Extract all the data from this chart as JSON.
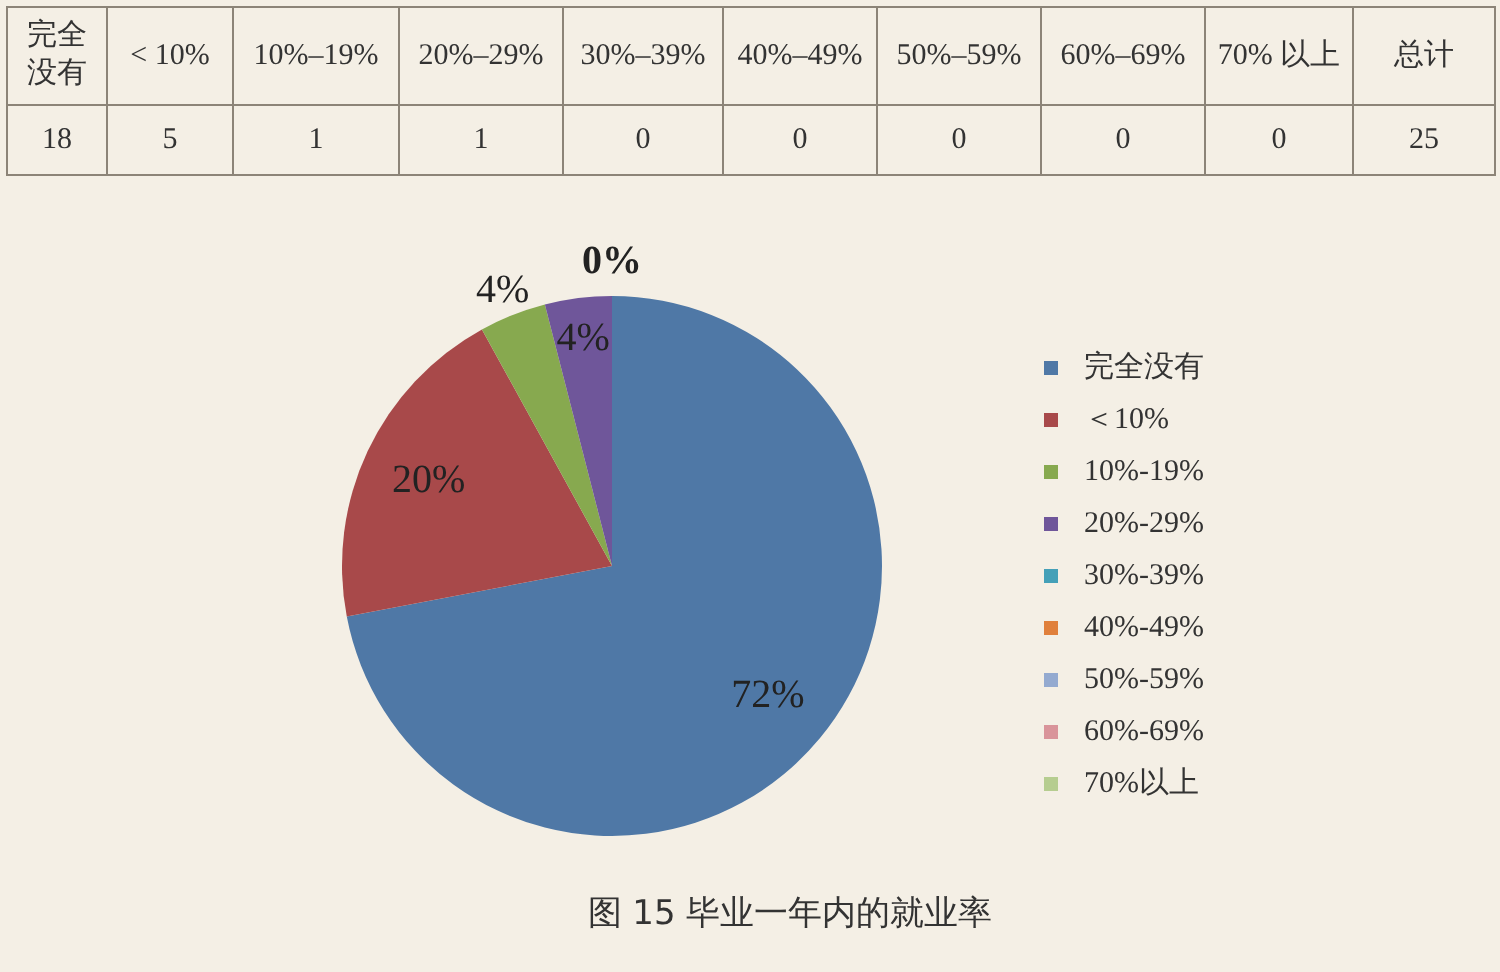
{
  "chart_data": [
    {
      "type": "other",
      "categories": [
        "完全没有",
        "< 10%",
        "10%–19%",
        "20%–29%",
        "30%–39%",
        "40%–49%",
        "50%–59%",
        "60%–69%",
        "70% 以上",
        "总计"
      ],
      "values": [
        18,
        5,
        1,
        1,
        0,
        0,
        0,
        0,
        0,
        25
      ],
      "data_labels": true
    },
    {
      "type": "pie",
      "title": "图 15 毕业一年内的就业率",
      "categories": [
        "完全没有",
        "＜10%",
        "10%-19%",
        "20%-29%",
        "30%-39%",
        "40%-49%",
        "50%-59%",
        "60%-69%",
        "70%以上"
      ],
      "values": [
        72,
        20,
        4,
        4,
        0,
        0,
        0,
        0,
        0
      ],
      "colors": [
        "#4f78a6",
        "#a8494a",
        "#87a94f",
        "#6f569a",
        "#44a0b8",
        "#e0803c",
        "#94aad0",
        "#d9949a",
        "#b6cd90"
      ],
      "value_labels": [
        "72%",
        "20%",
        "4%",
        "4%",
        "0%",
        null,
        null,
        null,
        null
      ],
      "legend": "right"
    }
  ]
}
